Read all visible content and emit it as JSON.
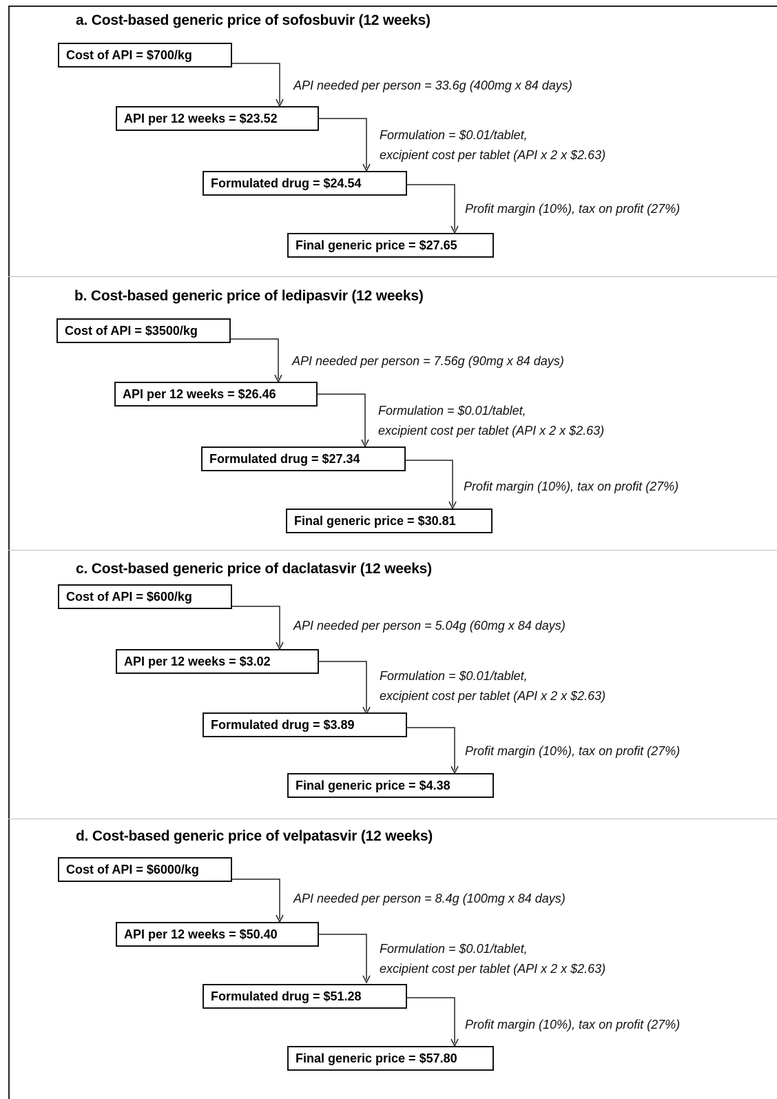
{
  "panels": [
    {
      "title": "a. Cost-based generic price of sofosbuvir (12 weeks)",
      "cost_api": "Cost of API = $700/kg",
      "api_needed": "API needed per person = 33.6g (400mg x 84 days)",
      "api_per_12": "API per 12 weeks = $23.52",
      "formulation_1": "Formulation = $0.01/tablet,",
      "formulation_2": "excipient cost per tablet (API x 2 x $2.63)",
      "formulated": "Formulated drug = $24.54",
      "profit": "Profit margin (10%), tax on profit (27%)",
      "final": "Final generic price = $27.65"
    },
    {
      "title": "b. Cost-based generic price of ledipasvir (12 weeks)",
      "cost_api": "Cost of API = $3500/kg",
      "api_needed": "API needed per person = 7.56g (90mg x 84 days)",
      "api_per_12": "API per 12 weeks = $26.46",
      "formulation_1": "Formulation = $0.01/tablet,",
      "formulation_2": "excipient cost per tablet (API x 2 x $2.63)",
      "formulated": "Formulated drug = $27.34",
      "profit": "Profit margin (10%), tax on profit (27%)",
      "final": "Final generic price = $30.81"
    },
    {
      "title": "c. Cost-based generic price of daclatasvir (12 weeks)",
      "cost_api": "Cost of API = $600/kg",
      "api_needed": "API needed per person = 5.04g (60mg x 84 days)",
      "api_per_12": "API per 12 weeks = $3.02",
      "formulation_1": "Formulation = $0.01/tablet,",
      "formulation_2": "excipient cost per tablet (API x 2 x $2.63)",
      "formulated": "Formulated drug = $3.89",
      "profit": "Profit margin (10%), tax on profit (27%)",
      "final": "Final generic price = $4.38"
    },
    {
      "title": "d. Cost-based generic price of velpatasvir (12 weeks)",
      "cost_api": "Cost of API = $6000/kg",
      "api_needed": "API needed per person = 8.4g (100mg x 84 days)",
      "api_per_12": "API per 12 weeks = $50.40",
      "formulation_1": "Formulation = $0.01/tablet,",
      "formulation_2": "excipient cost per tablet (API x 2 x $2.63)",
      "formulated": "Formulated drug = $51.28",
      "profit": "Profit margin (10%), tax on profit (27%)",
      "final": "Final generic price = $57.80"
    }
  ]
}
